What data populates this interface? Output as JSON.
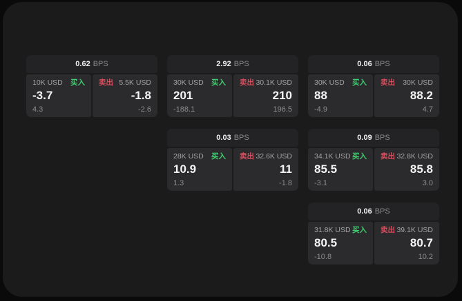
{
  "labels": {
    "bps_unit": "BPS",
    "buy": "买入",
    "sell": "卖出"
  },
  "colors": {
    "page_background": "#0a0a0a",
    "panel_background": "#1b1b1c",
    "card_header_background": "#232325",
    "tile_background": "#2b2b2d",
    "buy_accent": "#3ecf6e",
    "sell_accent": "#d44e5e"
  },
  "columns": [
    {
      "cards": [
        {
          "bps": "0.62",
          "buy": {
            "size": "10K USD",
            "value": "-3.7",
            "sub": "4.3"
          },
          "sell": {
            "size": "5.5K USD",
            "value": "-1.8",
            "sub": "-2.6"
          }
        }
      ]
    },
    {
      "cards": [
        {
          "bps": "2.92",
          "buy": {
            "size": "30K USD",
            "value": "201",
            "sub": "-188.1"
          },
          "sell": {
            "size": "30.1K USD",
            "value": "210",
            "sub": "196.5"
          }
        },
        {
          "bps": "0.03",
          "buy": {
            "size": "28K USD",
            "value": "10.9",
            "sub": "1.3"
          },
          "sell": {
            "size": "32.6K USD",
            "value": "11",
            "sub": "-1.8"
          }
        }
      ]
    },
    {
      "cards": [
        {
          "bps": "0.06",
          "buy": {
            "size": "30K USD",
            "value": "88",
            "sub": "-4.9"
          },
          "sell": {
            "size": "30K USD",
            "value": "88.2",
            "sub": "4.7"
          }
        },
        {
          "bps": "0.09",
          "buy": {
            "size": "34.1K USD",
            "value": "85.5",
            "sub": "-3.1"
          },
          "sell": {
            "size": "32.8K USD",
            "value": "85.8",
            "sub": "3.0"
          }
        },
        {
          "bps": "0.06",
          "buy": {
            "size": "31.8K USD",
            "value": "80.5",
            "sub": "-10.8"
          },
          "sell": {
            "size": "39.1K USD",
            "value": "80.7",
            "sub": "10.2"
          }
        }
      ]
    }
  ]
}
